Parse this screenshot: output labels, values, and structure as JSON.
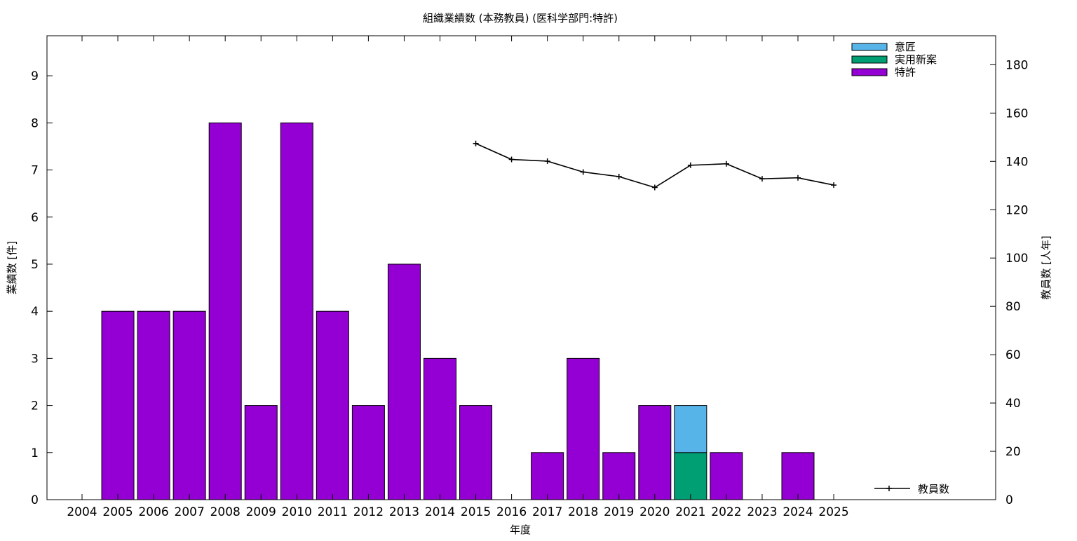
{
  "chart_data": {
    "type": "bar",
    "title": "組織業績数 (本務教員) (医科学部門:特許)",
    "xlabel": "年度",
    "ylabel": "業績数 [件]",
    "y2label": "教員数 [人年]",
    "categories": [
      "2004",
      "2005",
      "2006",
      "2007",
      "2008",
      "2009",
      "2010",
      "2011",
      "2012",
      "2013",
      "2014",
      "2015",
      "2016",
      "2017",
      "2018",
      "2019",
      "2020",
      "2021",
      "2022",
      "2023",
      "2024",
      "2025"
    ],
    "ylim": [
      0,
      9.85
    ],
    "yticks": [
      0,
      1,
      2,
      3,
      4,
      5,
      6,
      7,
      8,
      9
    ],
    "y2lim": [
      0,
      192
    ],
    "y2ticks": [
      0,
      20,
      40,
      60,
      80,
      100,
      120,
      140,
      160,
      180
    ],
    "stacked": true,
    "series": [
      {
        "name": "特許",
        "color": "#9400d3",
        "axis": "y",
        "values": [
          0,
          4,
          4,
          4,
          8,
          2,
          8,
          4,
          2,
          5,
          3,
          2,
          0,
          1,
          3,
          1,
          2,
          0,
          1,
          0,
          1,
          0
        ]
      },
      {
        "name": "実用新案",
        "color": "#009e73",
        "axis": "y",
        "values": [
          0,
          0,
          0,
          0,
          0,
          0,
          0,
          0,
          0,
          0,
          0,
          0,
          0,
          0,
          0,
          0,
          0,
          1,
          0,
          0,
          0,
          0
        ]
      },
      {
        "name": "意匠",
        "color": "#56b4e9",
        "axis": "y",
        "values": [
          0,
          0,
          0,
          0,
          0,
          0,
          0,
          0,
          0,
          0,
          0,
          0,
          0,
          0,
          0,
          0,
          0,
          1,
          0,
          0,
          0,
          0
        ]
      }
    ],
    "line_series": {
      "name": "教員数",
      "color": "#000000",
      "axis": "y2",
      "x": [
        "2015",
        "2016",
        "2017",
        "2018",
        "2019",
        "2020",
        "2021",
        "2022",
        "2023",
        "2024",
        "2025"
      ],
      "values": [
        147.4,
        140.8,
        140.1,
        135.6,
        133.7,
        129.2,
        138.4,
        139.0,
        132.8,
        133.2,
        130.2
      ]
    },
    "grid": false,
    "legend_position": "top-right"
  }
}
